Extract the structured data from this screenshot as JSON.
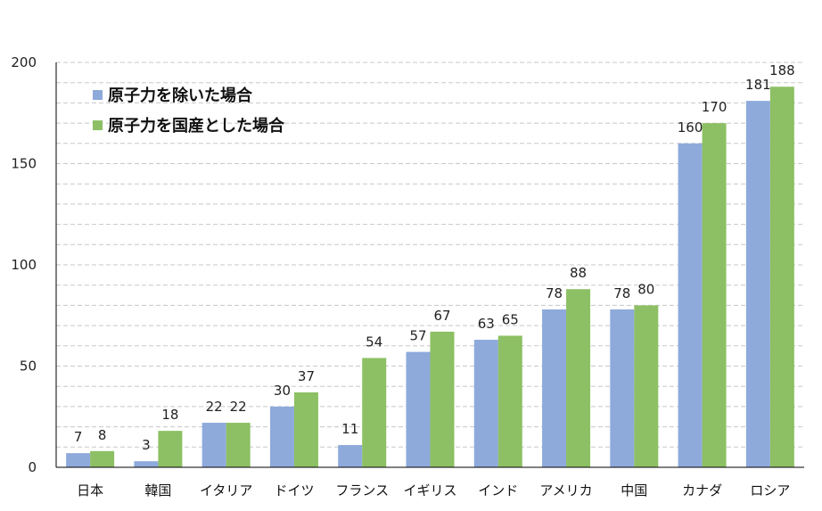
{
  "chart_data": {
    "type": "bar",
    "title": "",
    "xlabel": "",
    "ylabel": "",
    "ylim": [
      0,
      200
    ],
    "yticks": [
      0,
      50,
      100,
      150,
      200
    ],
    "grid": true,
    "legend_position": "top-left",
    "categories": [
      "日本",
      "韓国",
      "イタリア",
      "ドイツ",
      "フランス",
      "イギリス",
      "インド",
      "アメリカ",
      "中国",
      "カナダ",
      "ロシア"
    ],
    "series": [
      {
        "name": "原子力を除いた場合",
        "color": "#8eaadb",
        "values": [
          7,
          3,
          22,
          30,
          11,
          57,
          63,
          78,
          78,
          160,
          181
        ]
      },
      {
        "name": "原子力を国産とした場合",
        "color": "#8dc064",
        "values": [
          8,
          18,
          22,
          37,
          54,
          67,
          65,
          88,
          80,
          170,
          188
        ]
      }
    ]
  }
}
